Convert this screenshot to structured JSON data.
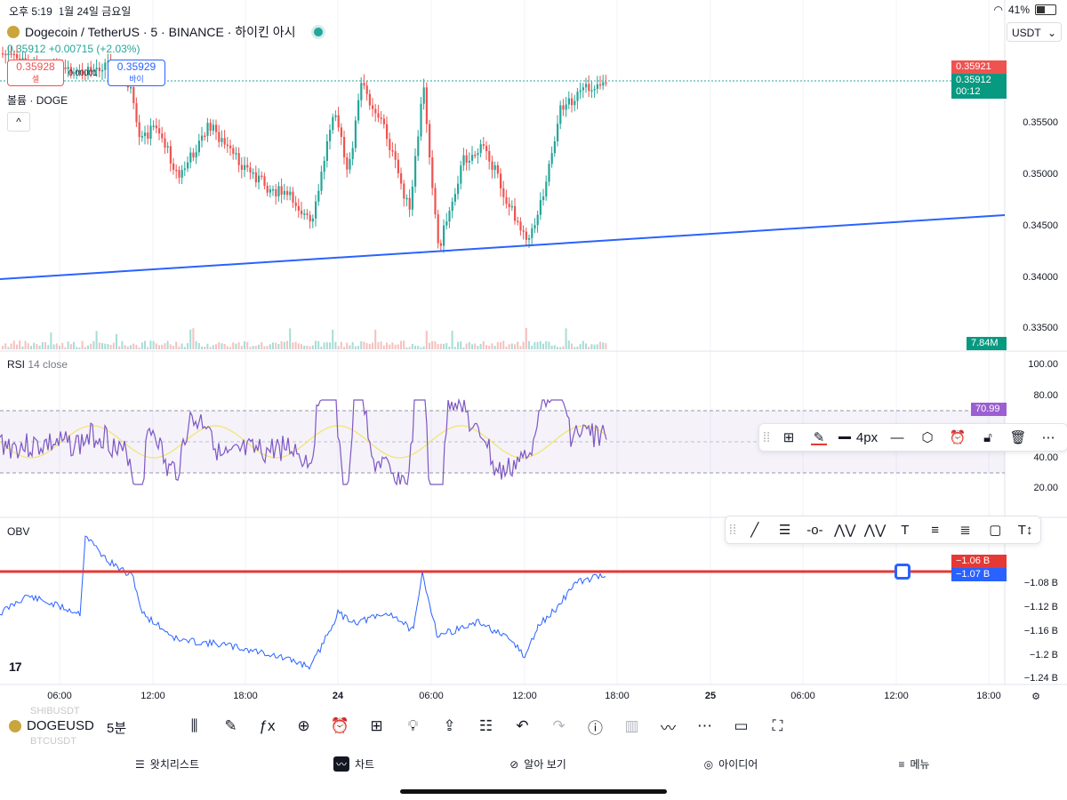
{
  "status_bar": {
    "time": "오후 5:19",
    "date": "1월 24일 금요일",
    "battery": "41%"
  },
  "header": {
    "title": "Dogecoin / TetherUS · 5 · BINANCE · 하이킨 아시",
    "price_line": "0.35912 +0.00715 (+2.03%)",
    "sell_price": "0.35928",
    "sell_label": "셀",
    "buy_price": "0.35929",
    "buy_label": "바이",
    "spread": "0.00001",
    "volume_label": "볼륨 · DOGE",
    "collapse_icon": "^",
    "currency": "USDT"
  },
  "price_axis": {
    "ticks": [
      "0.35500",
      "0.35000",
      "0.34500",
      "0.34000",
      "0.33500"
    ],
    "tag_high": "0.35921",
    "tag_last": "0.35912",
    "tag_countdown": "00:12",
    "tag_volume": "7.84M"
  },
  "rsi": {
    "title": "RSI",
    "params": "14 close",
    "ticks": [
      "100.00",
      "80.00",
      "40.00",
      "20.00"
    ],
    "tag_value": "70.99"
  },
  "obv": {
    "title": "OBV",
    "ticks": [
      "−1.08 B",
      "−1.12 B",
      "−1.16 B",
      "−1.2 B",
      "−1.24 B"
    ],
    "tag_line": "−1.06 B",
    "tag_value": "−1.07 B"
  },
  "time_axis": [
    "06:00",
    "12:00",
    "18:00",
    "24",
    "06:00",
    "12:00",
    "18:00",
    "25",
    "06:00",
    "12:00",
    "18:00"
  ],
  "line_toolbar": {
    "width_label": "4px"
  },
  "bottom_bar": {
    "symbol": "DOGEUSD",
    "timeframe": "5분",
    "ghost_above": "SHIBUSDT",
    "ghost_below": "BTCUSDT"
  },
  "nav": {
    "watchlist": "왓치리스트",
    "chart": "차트",
    "explore": "알아 보기",
    "ideas": "아이디어",
    "menu": "메뉴"
  },
  "logo": "17",
  "colors": {
    "up": "#26a69a",
    "down": "#ef5350",
    "trend": "#2962ff",
    "rsi": "#7e57c2",
    "alert_line": "#e53935"
  }
}
